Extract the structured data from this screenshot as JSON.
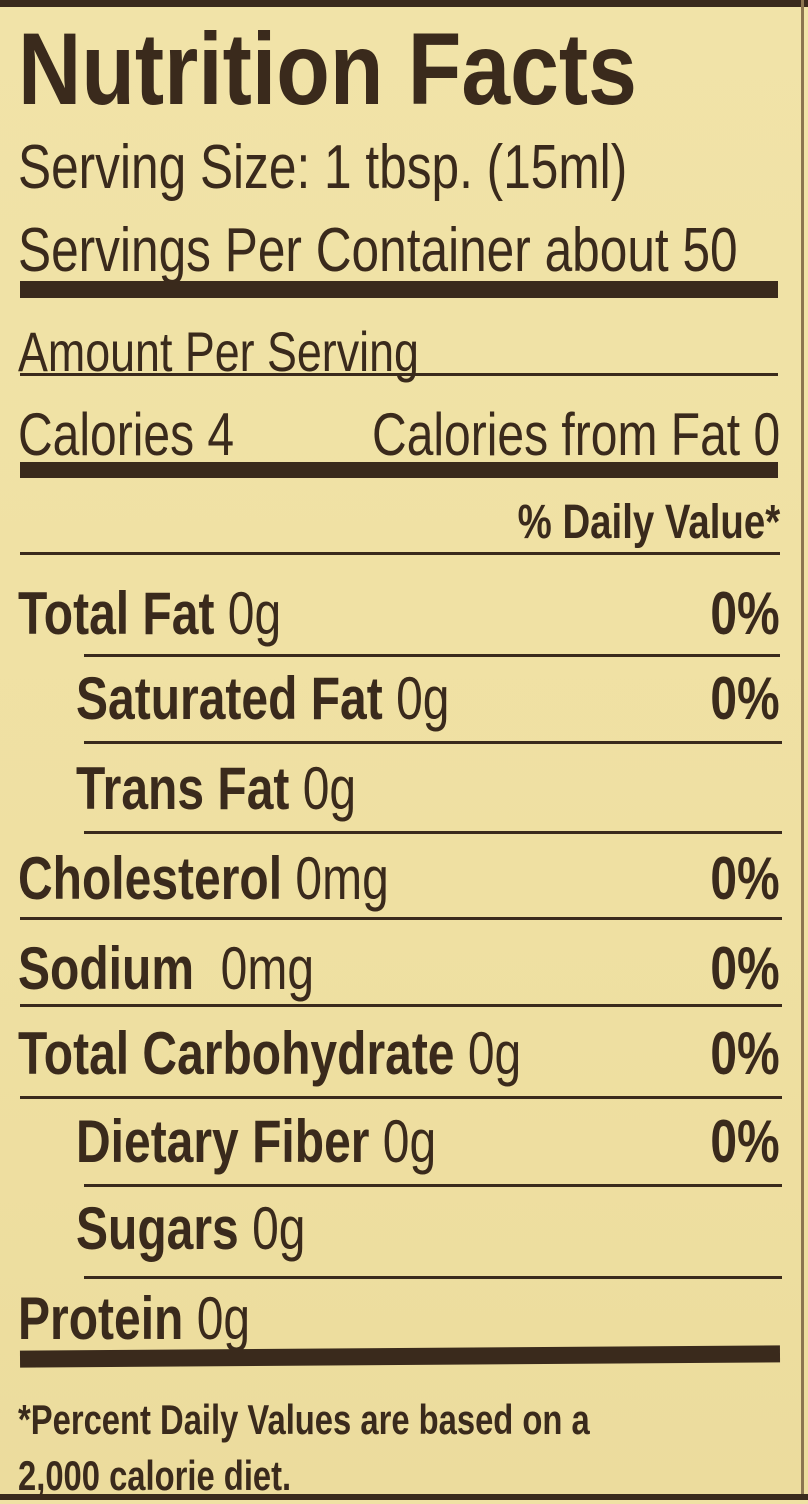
{
  "title": "Nutrition Facts",
  "serving_size": "Serving Size: 1 tbsp. (15ml)",
  "servings_per_container": "Servings Per Container about 50",
  "amount_per_serving": "Amount Per Serving",
  "calories": "Calories 4",
  "calories_from_fat": "Calories from Fat 0",
  "daily_value_header": "% Daily Value*",
  "nutrients": [
    {
      "name": "Total Fat",
      "amount": "0g",
      "dv": "0%"
    },
    {
      "name": "Saturated Fat",
      "amount": "0g",
      "dv": "0%"
    },
    {
      "name": "Trans Fat",
      "amount": "0g",
      "dv": ""
    },
    {
      "name": "Cholesterol",
      "amount": "0mg",
      "dv": "0%"
    },
    {
      "name": "Sodium",
      "amount": "0mg",
      "dv": "0%"
    },
    {
      "name": "Total Carbohydrate",
      "amount": "0g",
      "dv": "0%"
    },
    {
      "name": "Dietary Fiber",
      "amount": "0g",
      "dv": "0%"
    },
    {
      "name": "Sugars",
      "amount": "0g",
      "dv": ""
    },
    {
      "name": "Protein",
      "amount": "0g",
      "dv": ""
    }
  ],
  "footnote_line1": "*Percent Daily Values are based on a",
  "footnote_line2": "2,000 calorie diet.",
  "colors": {
    "background": "#efe1a4",
    "ink": "#3a2a1c"
  }
}
